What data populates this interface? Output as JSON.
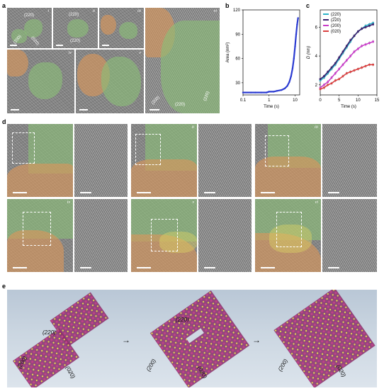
{
  "panel_letters": [
    "a",
    "b",
    "c",
    "d",
    "e"
  ],
  "panel_a": {
    "roman": [
      "i",
      "ii",
      "iii",
      "iv",
      "v",
      "vi"
    ],
    "labels_i": [
      "(220)",
      "(200)",
      "(020)"
    ],
    "labels_ii": [
      "(220)",
      "(220)"
    ],
    "labels_vi": [
      "(200)",
      "(220)",
      "(220)"
    ]
  },
  "panel_d": {
    "roman": [
      "i",
      "ii",
      "iii",
      "iv",
      "v",
      "vi"
    ]
  },
  "panel_e": {
    "labels_1": [
      "(220)",
      "(200)",
      "(020)"
    ],
    "labels_2": [
      "(220)",
      "(200)",
      "(020)"
    ],
    "labels_3": [
      "(200)",
      "(020)"
    ],
    "arrow": "→",
    "atom_colors": {
      "metal": "#c0408a",
      "anion": "#e8e24a",
      "bond": "#8a2e6a"
    }
  },
  "chart_data": [
    {
      "type": "scatter",
      "panel": "b",
      "xlabel": "Time (s)",
      "ylabel": "Area (nm²)",
      "xscale": "log",
      "xlim": [
        0.1,
        15
      ],
      "ylim": [
        15,
        120
      ],
      "xticks": [
        "0.1",
        "1",
        "10"
      ],
      "yticks": [
        "30",
        "60",
        "90",
        "120"
      ],
      "color": "#2b3bd1",
      "x": [
        0.1,
        0.2,
        0.3,
        0.5,
        0.8,
        1.0,
        1.5,
        2,
        3,
        4,
        5,
        6,
        7,
        8,
        9,
        10,
        11,
        12,
        13
      ],
      "y": [
        18,
        18,
        18,
        18,
        18,
        19,
        19,
        20,
        21,
        23,
        26,
        31,
        38,
        48,
        60,
        75,
        90,
        102,
        110
      ]
    },
    {
      "type": "line",
      "panel": "c",
      "xlabel": "Time (s)",
      "ylabel": "D (nm)",
      "xlim": [
        0,
        15
      ],
      "ylim": [
        1.3,
        7.2
      ],
      "xticks": [
        "0",
        "5",
        "10",
        "15"
      ],
      "yticks": [
        "2",
        "4",
        "6"
      ],
      "legend_position": "top-left",
      "x": [
        0,
        1,
        2,
        3,
        4,
        5,
        6,
        7,
        8,
        9,
        10,
        11,
        12,
        13,
        14
      ],
      "series": [
        {
          "name": "(220)",
          "color": "#2bb3c9",
          "values": [
            2.3,
            2.5,
            2.8,
            3.1,
            3.4,
            3.8,
            4.2,
            4.6,
            5.0,
            5.4,
            5.7,
            5.9,
            6.1,
            6.2,
            6.3
          ]
        },
        {
          "name": "(2̅20)",
          "color": "#3a1f6e",
          "values": [
            2.4,
            2.6,
            2.9,
            3.2,
            3.5,
            3.9,
            4.3,
            4.7,
            5.1,
            5.4,
            5.7,
            5.9,
            6.0,
            6.1,
            6.2
          ]
        },
        {
          "name": "(200)",
          "color": "#c93bc9",
          "values": [
            1.8,
            2.0,
            2.2,
            2.5,
            2.8,
            3.1,
            3.4,
            3.7,
            4.0,
            4.3,
            4.5,
            4.7,
            4.8,
            4.9,
            5.0
          ]
        },
        {
          "name": "(020)",
          "color": "#d94040",
          "values": [
            1.7,
            1.8,
            2.0,
            2.1,
            2.3,
            2.4,
            2.6,
            2.8,
            2.9,
            3.0,
            3.1,
            3.2,
            3.3,
            3.4,
            3.4
          ]
        }
      ]
    }
  ]
}
